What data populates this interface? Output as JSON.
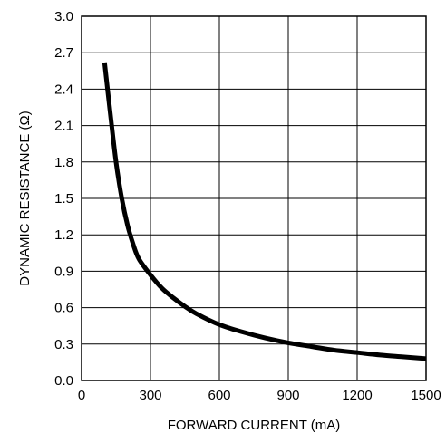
{
  "chart_data": {
    "type": "line",
    "title": "",
    "xlabel": "FORWARD CURRENT (mA)",
    "ylabel": "DYNAMIC RESISTANCE (Ω)",
    "xlim": [
      0,
      1500
    ],
    "ylim": [
      0.0,
      3.0
    ],
    "x_ticks": [
      "0",
      "300",
      "600",
      "900",
      "1200",
      "1500"
    ],
    "y_ticks": [
      "0.0",
      "0.3",
      "0.6",
      "0.9",
      "1.2",
      "1.5",
      "1.8",
      "2.1",
      "2.4",
      "2.7",
      "3.0"
    ],
    "grid": true,
    "legend": "none",
    "series": [
      {
        "color": "#000000",
        "x": [
          100,
          125,
          150,
          175,
          200,
          225,
          250,
          300,
          350,
          400,
          450,
          500,
          600,
          700,
          800,
          900,
          1000,
          1100,
          1200,
          1300,
          1400,
          1500
        ],
        "y": [
          2.62,
          2.2,
          1.8,
          1.5,
          1.28,
          1.12,
          1.0,
          0.87,
          0.76,
          0.68,
          0.61,
          0.55,
          0.46,
          0.4,
          0.35,
          0.31,
          0.28,
          0.25,
          0.23,
          0.21,
          0.195,
          0.18
        ]
      }
    ]
  }
}
